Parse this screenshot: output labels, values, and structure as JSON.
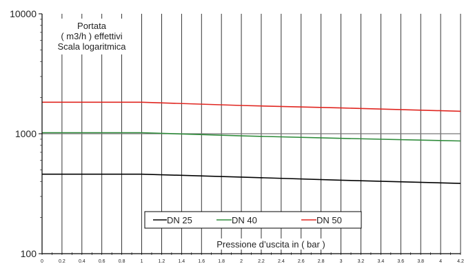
{
  "chart_data": {
    "type": "line",
    "title_lines": [
      "Portata",
      "( m3/h ) effettivi",
      "Scala logaritmica"
    ],
    "xlabel": "Pressione d’uscita in ( bar )",
    "ylabel": "",
    "yscale": "log",
    "ylim": [
      100,
      10000
    ],
    "xlim": [
      0,
      4.2
    ],
    "y_tick_labels": [
      "100",
      "1000",
      "10000"
    ],
    "y_tick_values": [
      100,
      1000,
      10000
    ],
    "x_tick_labels": [
      "0",
      "0.2",
      "0.4",
      "0.6",
      "0.8",
      "1",
      "1.2",
      "1.4",
      "1.6",
      "1.8",
      "2",
      "2.2",
      "2.4",
      "2.6",
      "2.8",
      "3",
      "3.2",
      "3.4",
      "3.6",
      "3.8",
      "4",
      "4.2"
    ],
    "x": [
      0,
      1,
      2,
      3,
      4.2
    ],
    "series": [
      {
        "name": "DN 25",
        "color": "#000000",
        "values": [
          460,
          460,
          435,
          410,
          385
        ]
      },
      {
        "name": "DN 40",
        "color": "#2e8b3a",
        "values": [
          1020,
          1020,
          960,
          915,
          870
        ]
      },
      {
        "name": "DN 50",
        "color": "#e0251f",
        "values": [
          1830,
          1830,
          1720,
          1640,
          1540
        ]
      }
    ],
    "reference_line": {
      "value": 1000,
      "color": "#777777"
    },
    "grid": "vertical",
    "legend_position": "bottom-center"
  }
}
